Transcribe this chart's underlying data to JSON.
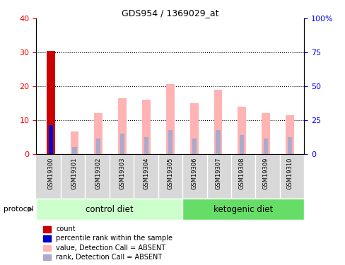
{
  "title": "GDS954 / 1369029_at",
  "samples": [
    "GSM19300",
    "GSM19301",
    "GSM19302",
    "GSM19303",
    "GSM19304",
    "GSM19305",
    "GSM19306",
    "GSM19307",
    "GSM19308",
    "GSM19309",
    "GSM19310"
  ],
  "pink_values": [
    30.5,
    6.5,
    12.0,
    16.5,
    16.0,
    20.5,
    15.0,
    19.0,
    14.0,
    12.0,
    11.5
  ],
  "blue_values": [
    8.5,
    2.0,
    4.5,
    6.0,
    5.0,
    7.0,
    4.5,
    7.0,
    5.5,
    4.5,
    5.0
  ],
  "red_bar_index": 0,
  "red_bar_value": 30.5,
  "left_ylim": [
    0,
    40
  ],
  "right_ylim": [
    0,
    100
  ],
  "left_yticks": [
    0,
    10,
    20,
    30,
    40
  ],
  "right_yticks": [
    0,
    25,
    50,
    75,
    100
  ],
  "right_yticklabels": [
    "0",
    "25",
    "50",
    "75",
    "100%"
  ],
  "control_diet_label": "control diet",
  "ketogenic_diet_label": "ketogenic diet",
  "protocol_label": "protocol",
  "n_control": 6,
  "n_ketogenic": 5,
  "legend_labels": [
    "count",
    "percentile rank within the sample",
    "value, Detection Call = ABSENT",
    "rank, Detection Call = ABSENT"
  ],
  "legend_colors": [
    "#cc0000",
    "#0000cc",
    "#ffb3b3",
    "#aaaacc"
  ],
  "pink_color": "#ffb3b3",
  "blue_color": "#aaaacc",
  "red_color": "#cc0000",
  "blue_marker_color": "#0000cc",
  "bg_color": "#d8d8d8",
  "control_bg": "#ccffcc",
  "ketogenic_bg": "#66dd66",
  "bar_width": 0.35,
  "blue_bar_width": 0.18
}
